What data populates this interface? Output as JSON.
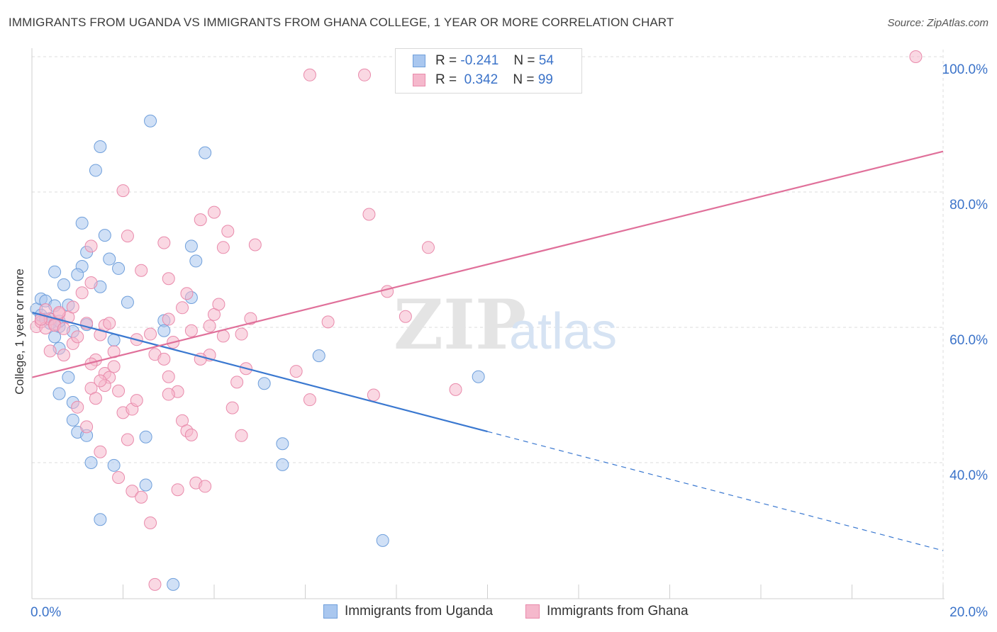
{
  "title": "IMMIGRANTS FROM UGANDA VS IMMIGRANTS FROM GHANA COLLEGE, 1 YEAR OR MORE CORRELATION CHART",
  "source": "Source: ZipAtlas.com",
  "watermark": {
    "zip": "ZIP",
    "atlas": "atlas"
  },
  "colors": {
    "blue_fill": "#a9c7ef",
    "blue_stroke": "#6f9fdb",
    "blue_line": "#3a78d0",
    "pink_fill": "#f5b8cc",
    "pink_stroke": "#e98aab",
    "pink_line": "#e0709a",
    "axis_text": "#3b73c9",
    "grid": "#dcdcdc"
  },
  "legend": {
    "rows": [
      {
        "r_label": "R =",
        "r_value": "-0.241",
        "n_label": "N =",
        "n_value": "54"
      },
      {
        "r_label": "R =",
        "r_value": "0.342",
        "n_label": "N =",
        "n_value": "99"
      }
    ]
  },
  "chart_data": {
    "type": "scatter",
    "title": "IMMIGRANTS FROM UGANDA VS IMMIGRANTS FROM GHANA COLLEGE, 1 YEAR OR MORE CORRELATION CHART",
    "xlabel": "",
    "ylabel": "College, 1 year or more",
    "xlim": [
      0,
      20
    ],
    "ylim": [
      20,
      102
    ],
    "x_tick_labels": [
      {
        "value": 0,
        "label": "0.0%"
      },
      {
        "value": 20,
        "label": "20.0%"
      }
    ],
    "x_minor_ticks": [
      0,
      2,
      4,
      6,
      8,
      10,
      12,
      14,
      16,
      18,
      20
    ],
    "y_ticks": [
      {
        "value": 40,
        "label": "40.0%"
      },
      {
        "value": 60,
        "label": "60.0%"
      },
      {
        "value": 80,
        "label": "80.0%"
      },
      {
        "value": 100,
        "label": "100.0%"
      }
    ],
    "series": [
      {
        "name": "Immigrants from Uganda",
        "color": "blue",
        "trend": {
          "x0": 0,
          "y0": 62.2,
          "x1": 10,
          "y1": 44.6,
          "dash_to_x": 20,
          "dash_to_y": 27.0
        },
        "points": [
          [
            0.1,
            62.7
          ],
          [
            0.2,
            64.2
          ],
          [
            0.3,
            63.9
          ],
          [
            0.4,
            61.3
          ],
          [
            0.5,
            63.2
          ],
          [
            0.6,
            60.1
          ],
          [
            0.7,
            66.3
          ],
          [
            0.8,
            63.3
          ],
          [
            0.2,
            61.8
          ],
          [
            0.3,
            61.2
          ],
          [
            0.4,
            60.6
          ],
          [
            0.5,
            58.6
          ],
          [
            0.6,
            60.9
          ],
          [
            0.5,
            68.2
          ],
          [
            0.9,
            59.4
          ],
          [
            1.1,
            75.4
          ],
          [
            1.2,
            71.1
          ],
          [
            1.1,
            69.0
          ],
          [
            1.0,
            67.8
          ],
          [
            1.5,
            86.7
          ],
          [
            1.4,
            83.2
          ],
          [
            1.6,
            73.6
          ],
          [
            1.7,
            70.1
          ],
          [
            1.5,
            66.0
          ],
          [
            1.9,
            68.7
          ],
          [
            2.1,
            63.7
          ],
          [
            1.8,
            58.1
          ],
          [
            2.6,
            90.5
          ],
          [
            3.8,
            85.8
          ],
          [
            3.5,
            72.0
          ],
          [
            3.6,
            69.8
          ],
          [
            3.5,
            64.4
          ],
          [
            2.9,
            61.0
          ],
          [
            2.9,
            59.5
          ],
          [
            1.2,
            60.4
          ],
          [
            0.6,
            56.9
          ],
          [
            0.8,
            52.6
          ],
          [
            0.6,
            50.2
          ],
          [
            0.9,
            48.9
          ],
          [
            0.9,
            46.3
          ],
          [
            1.0,
            44.5
          ],
          [
            1.2,
            44.0
          ],
          [
            1.3,
            40.0
          ],
          [
            1.8,
            39.6
          ],
          [
            2.5,
            43.8
          ],
          [
            2.5,
            36.7
          ],
          [
            1.5,
            31.6
          ],
          [
            3.1,
            22.0
          ],
          [
            6.3,
            55.8
          ],
          [
            5.1,
            51.7
          ],
          [
            5.5,
            42.8
          ],
          [
            5.5,
            39.7
          ],
          [
            7.7,
            28.5
          ],
          [
            9.8,
            52.7
          ]
        ]
      },
      {
        "name": "Immigrants from Ghana",
        "color": "pink",
        "trend": {
          "x0": 0,
          "y0": 52.6,
          "x1": 20,
          "y1": 86.0
        },
        "points": [
          [
            0.1,
            60.1
          ],
          [
            0.2,
            60.8
          ],
          [
            0.3,
            59.9
          ],
          [
            0.4,
            61.2
          ],
          [
            0.5,
            60.5
          ],
          [
            0.6,
            62.0
          ],
          [
            0.3,
            62.6
          ],
          [
            0.5,
            60.3
          ],
          [
            0.7,
            59.8
          ],
          [
            0.8,
            61.5
          ],
          [
            0.4,
            56.5
          ],
          [
            0.7,
            55.9
          ],
          [
            0.9,
            57.6
          ],
          [
            1.0,
            58.6
          ],
          [
            1.1,
            65.1
          ],
          [
            1.2,
            60.6
          ],
          [
            1.3,
            72.0
          ],
          [
            1.3,
            66.6
          ],
          [
            1.5,
            58.9
          ],
          [
            1.6,
            60.3
          ],
          [
            1.7,
            60.6
          ],
          [
            1.4,
            55.2
          ],
          [
            1.3,
            54.6
          ],
          [
            1.6,
            53.2
          ],
          [
            1.7,
            52.6
          ],
          [
            1.8,
            54.2
          ],
          [
            1.9,
            50.6
          ],
          [
            1.6,
            51.4
          ],
          [
            1.3,
            51.0
          ],
          [
            1.4,
            49.5
          ],
          [
            1.0,
            48.2
          ],
          [
            1.2,
            45.3
          ],
          [
            1.5,
            41.6
          ],
          [
            1.9,
            37.8
          ],
          [
            2.0,
            47.4
          ],
          [
            2.2,
            47.9
          ],
          [
            2.3,
            49.2
          ],
          [
            2.1,
            43.4
          ],
          [
            2.2,
            35.8
          ],
          [
            2.4,
            34.9
          ],
          [
            2.6,
            31.1
          ],
          [
            2.7,
            22.0
          ],
          [
            2.0,
            80.2
          ],
          [
            2.1,
            73.5
          ],
          [
            2.4,
            68.4
          ],
          [
            2.9,
            72.5
          ],
          [
            3.0,
            67.2
          ],
          [
            3.3,
            62.9
          ],
          [
            3.5,
            59.5
          ],
          [
            3.0,
            61.2
          ],
          [
            2.6,
            59.0
          ],
          [
            2.7,
            56.0
          ],
          [
            2.9,
            55.3
          ],
          [
            3.0,
            52.7
          ],
          [
            3.2,
            50.5
          ],
          [
            3.0,
            50.1
          ],
          [
            3.3,
            46.2
          ],
          [
            3.4,
            44.7
          ],
          [
            3.5,
            44.1
          ],
          [
            3.6,
            37.0
          ],
          [
            3.2,
            36.0
          ],
          [
            3.8,
            36.5
          ],
          [
            3.9,
            55.9
          ],
          [
            3.7,
            55.3
          ],
          [
            3.9,
            60.2
          ],
          [
            4.0,
            61.9
          ],
          [
            4.1,
            63.4
          ],
          [
            4.2,
            71.8
          ],
          [
            4.3,
            74.2
          ],
          [
            4.0,
            77.0
          ],
          [
            3.7,
            75.9
          ],
          [
            4.4,
            48.1
          ],
          [
            4.5,
            51.9
          ],
          [
            4.7,
            53.9
          ],
          [
            4.6,
            59.0
          ],
          [
            4.8,
            61.3
          ],
          [
            4.9,
            72.2
          ],
          [
            4.6,
            44.0
          ],
          [
            6.1,
            97.3
          ],
          [
            6.1,
            49.3
          ],
          [
            7.3,
            97.3
          ],
          [
            7.4,
            76.7
          ],
          [
            7.5,
            50.0
          ],
          [
            7.8,
            65.3
          ],
          [
            8.2,
            61.6
          ],
          [
            8.7,
            71.8
          ],
          [
            9.3,
            50.8
          ],
          [
            19.4,
            100.0
          ],
          [
            0.2,
            61.2
          ],
          [
            0.6,
            62.2
          ],
          [
            1.5,
            52.1
          ],
          [
            2.3,
            58.2
          ],
          [
            4.2,
            58.7
          ],
          [
            5.8,
            53.5
          ],
          [
            6.5,
            60.8
          ],
          [
            3.4,
            65.0
          ],
          [
            0.9,
            63.0
          ],
          [
            1.8,
            56.4
          ],
          [
            3.1,
            57.8
          ]
        ]
      }
    ]
  }
}
